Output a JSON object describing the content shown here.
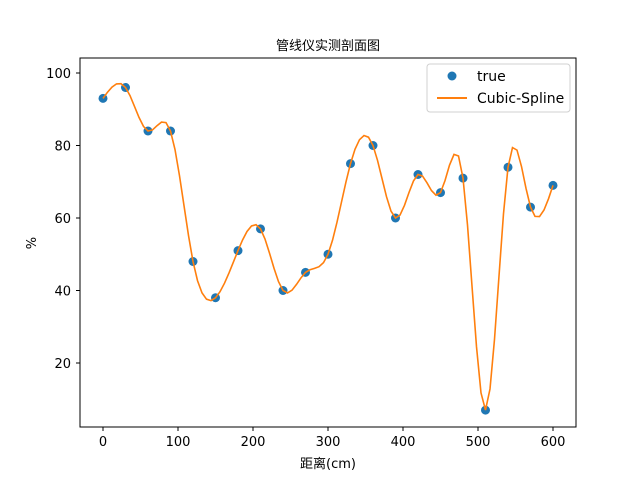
{
  "chart_data": {
    "type": "line",
    "title": "管线仪实测剖面图",
    "xlabel": "距离(cm)",
    "ylabel": "%",
    "xlim": [
      -30,
      630
    ],
    "ylim": [
      3,
      104
    ],
    "xticks": [
      0,
      100,
      200,
      300,
      400,
      500,
      600
    ],
    "yticks": [
      20,
      40,
      60,
      80,
      100
    ],
    "grid": false,
    "legend_position": "upper right",
    "series": [
      {
        "name": "true",
        "style": "scatter",
        "color": "#1f77b4",
        "x": [
          0,
          30,
          60,
          90,
          120,
          150,
          180,
          210,
          240,
          270,
          300,
          330,
          360,
          390,
          420,
          450,
          480,
          510,
          540,
          570,
          600
        ],
        "values": [
          93,
          96,
          84,
          84,
          48,
          38,
          51,
          57,
          40,
          45,
          50,
          75,
          80,
          60,
          72,
          67,
          71,
          7,
          74,
          63,
          69
        ]
      },
      {
        "name": "Cubic-Spline",
        "style": "line",
        "color": "#ff7f0e",
        "x": [
          0,
          30,
          60,
          90,
          120,
          150,
          180,
          210,
          240,
          270,
          300,
          330,
          360,
          390,
          420,
          450,
          480,
          510,
          540,
          570,
          600
        ],
        "values": [
          93,
          96,
          84,
          84,
          48,
          38,
          51,
          57,
          40,
          45,
          50,
          75,
          80,
          60,
          72,
          67,
          71,
          7,
          74,
          63,
          69
        ]
      }
    ]
  },
  "labels": {
    "title": "管线仪实测剖面图",
    "xlabel": "距离(cm)",
    "ylabel": "%",
    "legend_true": "true",
    "legend_spline": "Cubic-Spline"
  }
}
